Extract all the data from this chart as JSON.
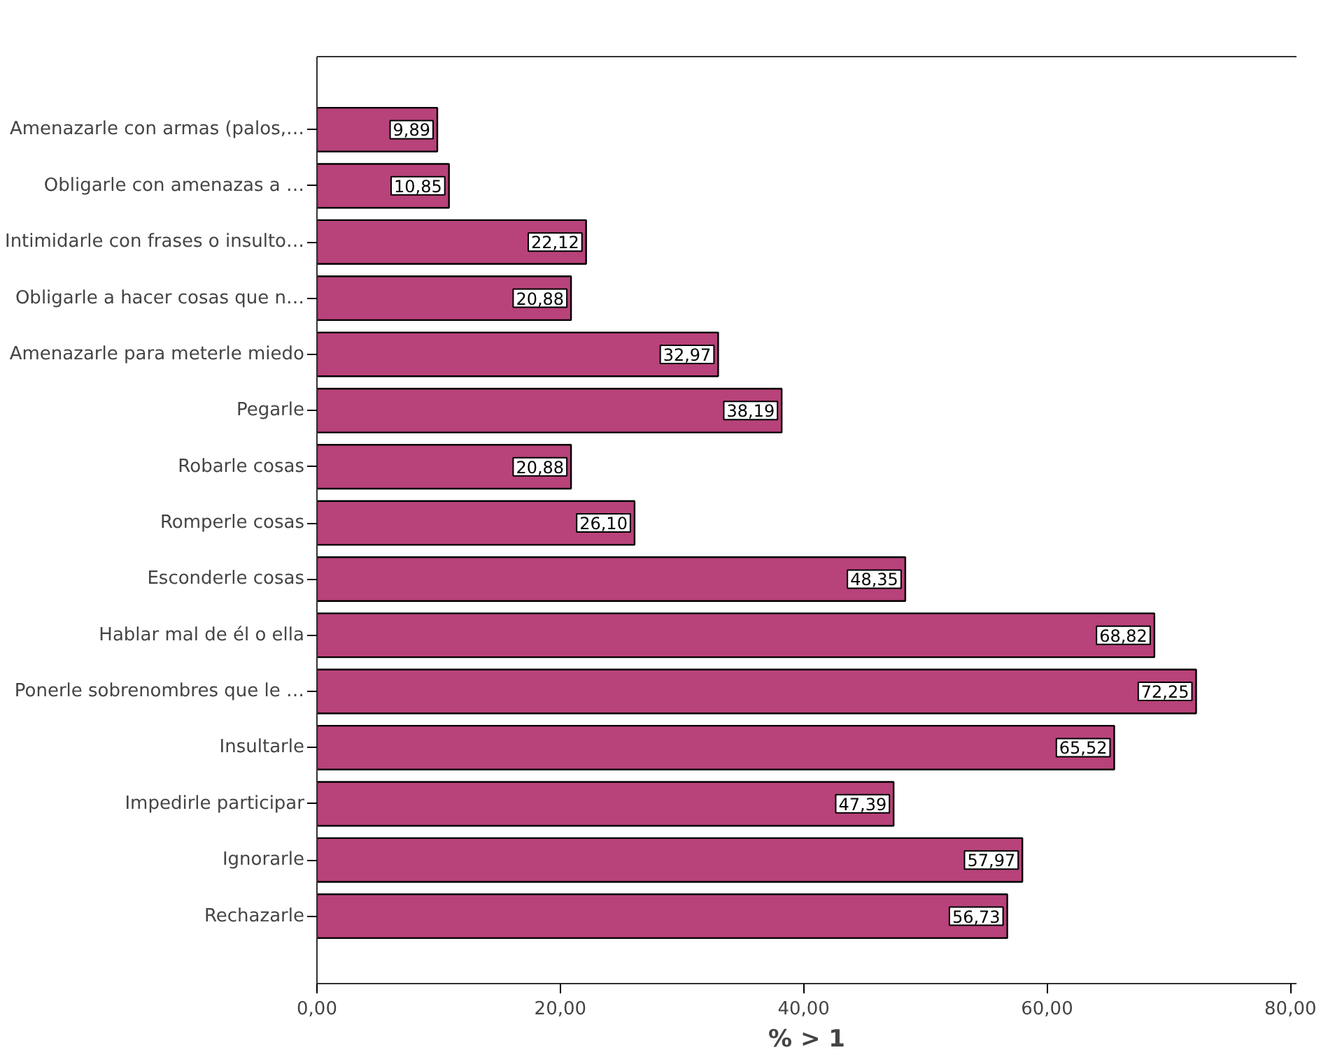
{
  "chart_data": {
    "type": "bar",
    "orientation": "horizontal",
    "xlabel": "% > 1",
    "categories": [
      "Amenazarle con armas (palos,…",
      "Obligarle con amenazas a …",
      "Intimidarle con frases o insulto…",
      "Obligarle a hacer cosas que n…",
      "Amenazarle para meterle miedo",
      "Pegarle",
      "Robarle cosas",
      "Romperle cosas",
      "Esconderle cosas",
      "Hablar mal de él o ella",
      "Ponerle sobrenombres que le …",
      "Insultarle",
      "Impedirle participar",
      "Ignorarle",
      "Rechazarle"
    ],
    "values": [
      9.89,
      10.85,
      22.12,
      20.88,
      32.97,
      38.19,
      20.88,
      26.1,
      48.35,
      68.82,
      72.25,
      65.52,
      47.39,
      57.97,
      56.73
    ],
    "value_labels": [
      "9,89",
      "10,85",
      "22,12",
      "20,88",
      "32,97",
      "38,19",
      "20,88",
      "26,10",
      "48,35",
      "68,82",
      "72,25",
      "65,52",
      "47,39",
      "57,97",
      "56,73"
    ],
    "color": "#b8427a",
    "xlim": [
      0,
      80.5
    ],
    "xticks": [
      {
        "value": 0,
        "label": "0,00"
      },
      {
        "value": 20,
        "label": "20,00"
      },
      {
        "value": 40,
        "label": "40,00"
      },
      {
        "value": 60,
        "label": "60,00"
      },
      {
        "value": 80,
        "label": "80,00"
      }
    ],
    "grid": false
  }
}
